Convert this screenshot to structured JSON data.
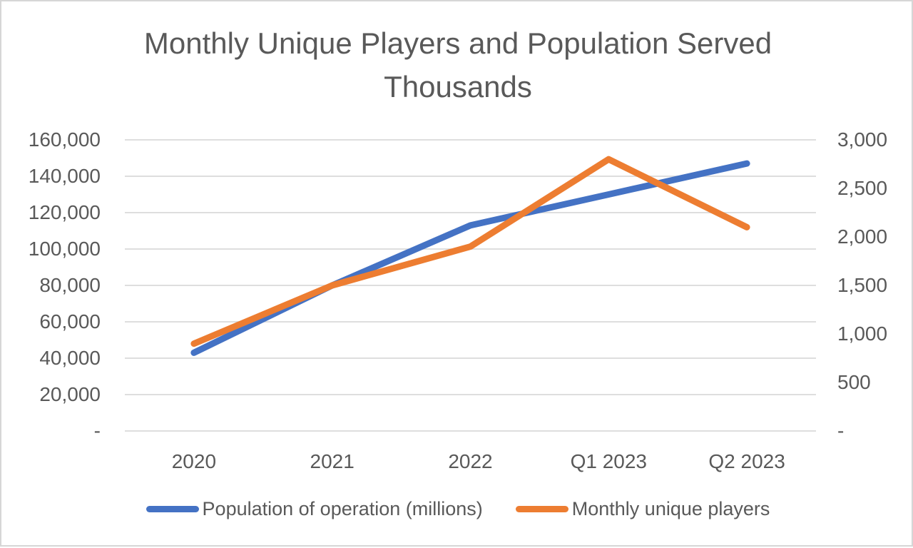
{
  "title": {
    "line1": "Monthly Unique Players and Population Served",
    "line2": "Thousands"
  },
  "colors": {
    "population_series": "#4472C4",
    "players_series": "#ED7D31",
    "text": "#595959",
    "gridline": "#D9D9D9",
    "frame_border": "#D6D6D6",
    "background": "#FFFFFF"
  },
  "chart_data": {
    "type": "line",
    "title": "Monthly Unique Players and Population Served",
    "subtitle": "Thousands",
    "categories": [
      "2020",
      "2021",
      "2022",
      "Q1 2023",
      "Q2 2023"
    ],
    "series": [
      {
        "name": "Population of operation (millions)",
        "axis": "left",
        "color": "#4472C4",
        "values": [
          43000,
          80000,
          113000,
          130000,
          147000
        ]
      },
      {
        "name": "Monthly unique players",
        "axis": "right",
        "color": "#ED7D31",
        "values": [
          900,
          1500,
          1900,
          2800,
          2100
        ]
      }
    ],
    "left_axis": {
      "min": 0,
      "max": 160000,
      "interval": 20000,
      "tick_labels": [
        "160,000",
        "140,000",
        "120,000",
        "100,000",
        "80,000",
        "60,000",
        "40,000",
        "20,000",
        "-"
      ]
    },
    "right_axis": {
      "min": 0,
      "max": 3000,
      "interval": 500,
      "tick_labels": [
        "3,000",
        "2,500",
        "2,000",
        "1,500",
        "1,000",
        "500",
        "-"
      ]
    },
    "grid": true,
    "legend_position": "bottom"
  }
}
